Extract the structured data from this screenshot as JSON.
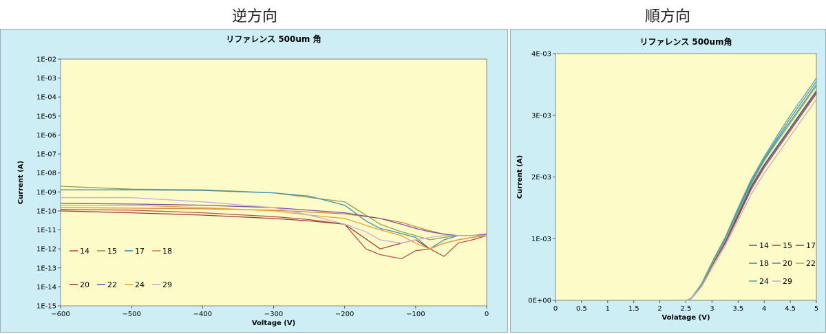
{
  "headings": {
    "left": "逆方向",
    "right": "順方向"
  },
  "chart_data": [
    {
      "type": "line",
      "title": "リファレンス 500um 角",
      "xlabel": "Voltage (V)",
      "ylabel": "Current (A)",
      "xlim": [
        -600,
        0
      ],
      "ylim": [
        1e-15,
        0.01
      ],
      "y_scale": "log",
      "x_ticks": [
        "−600",
        "−500",
        "−400",
        "−300",
        "−200",
        "−100",
        "0"
      ],
      "x_tick_values": [
        -600,
        -500,
        -400,
        -300,
        -200,
        -100,
        0
      ],
      "y_ticks": [
        "1E-15",
        "1E-14",
        "1E-13",
        "1E-12",
        "1E-11",
        "1E-10",
        "1E-09",
        "1E-08",
        "1E-07",
        "1E-06",
        "1E-05",
        "1E-04",
        "1E-03",
        "1E-02"
      ],
      "plot_background": "#fdfbc8",
      "legend_position": "bottom-left",
      "series": [
        {
          "name": "14",
          "color": "#b8524a",
          "x": [
            -600,
            -500,
            -400,
            -300,
            -250,
            -200,
            -170,
            -150,
            -120,
            -100,
            -80,
            -60,
            -40,
            -20,
            0
          ],
          "y": [
            1.2e-10,
            1.1e-10,
            8e-11,
            5e-11,
            3.5e-11,
            2e-11,
            1e-12,
            5e-13,
            3e-13,
            8e-13,
            1e-12,
            4e-13,
            2e-12,
            3e-12,
            5e-12
          ]
        },
        {
          "name": "15",
          "color": "#8ca34a",
          "x": [
            -600,
            -500,
            -400,
            -300,
            -200,
            -150,
            -120,
            -100,
            -80,
            -60,
            -40,
            -20,
            0
          ],
          "y": [
            2e-09,
            1.4e-09,
            1.3e-09,
            9e-10,
            3e-10,
            2e-11,
            8e-12,
            5e-12,
            3e-12,
            4e-12,
            5e-12,
            5e-12,
            5e-12
          ]
        },
        {
          "name": "17",
          "color": "#3f8fb8",
          "x": [
            -600,
            -500,
            -400,
            -300,
            -250,
            -200,
            -170,
            -150,
            -130,
            -100,
            -80,
            -60,
            -40,
            -20,
            0
          ],
          "y": [
            1.3e-09,
            1.3e-09,
            1.2e-09,
            9e-10,
            6e-10,
            2e-10,
            3e-11,
            1.2e-11,
            8e-12,
            4e-12,
            1e-12,
            3e-12,
            5e-12,
            5e-12,
            5e-12
          ]
        },
        {
          "name": "18",
          "color": "#d08c3a",
          "x": [
            -600,
            -500,
            -400,
            -300,
            -200,
            -150,
            -120,
            -100,
            -80,
            -60,
            -40,
            -20,
            0
          ],
          "y": [
            1.5e-10,
            1.4e-10,
            1.3e-10,
            1.1e-10,
            7e-11,
            4e-11,
            2.5e-11,
            1.5e-11,
            9e-12,
            6e-12,
            5e-12,
            5e-12,
            6e-12
          ]
        },
        {
          "name": "20",
          "color": "#a83a3a",
          "x": [
            -600,
            -500,
            -400,
            -300,
            -250,
            -200,
            -150,
            -120,
            -100,
            -80,
            -60,
            -40,
            -20,
            0
          ],
          "y": [
            1e-10,
            8e-11,
            6e-11,
            4e-11,
            3e-11,
            2e-11,
            1e-12,
            2e-12,
            3e-12,
            1e-12,
            2e-12,
            3e-12,
            4e-12,
            5e-12
          ]
        },
        {
          "name": "22",
          "color": "#7d4fa8",
          "x": [
            -600,
            -500,
            -400,
            -300,
            -200,
            -150,
            -120,
            -100,
            -80,
            -60,
            -40,
            -20,
            0
          ],
          "y": [
            2.5e-10,
            2.3e-10,
            2e-10,
            1.5e-10,
            8e-11,
            4e-11,
            2e-11,
            1.2e-11,
            8e-12,
            6e-12,
            5e-12,
            5e-12,
            6e-12
          ]
        },
        {
          "name": "24",
          "color": "#f0a030",
          "x": [
            -600,
            -500,
            -400,
            -300,
            -250,
            -200,
            -150,
            -120,
            -100,
            -80,
            -60,
            -40,
            -20,
            0
          ],
          "y": [
            2e-10,
            2e-10,
            1.5e-10,
            1e-10,
            6e-11,
            4e-11,
            1e-11,
            5e-12,
            2e-12,
            1e-12,
            2e-12,
            3e-12,
            4e-12,
            5e-12
          ]
        },
        {
          "name": "29",
          "color": "#c8aad8",
          "x": [
            -600,
            -500,
            -400,
            -300,
            -250,
            -200,
            -170,
            -150,
            -120,
            -100,
            -80,
            -60,
            -40,
            -20,
            0
          ],
          "y": [
            5e-10,
            5e-10,
            3e-10,
            1.5e-10,
            6e-11,
            2e-11,
            8e-12,
            3e-12,
            2e-12,
            3e-12,
            4e-12,
            5e-12,
            5e-12,
            5e-12,
            5e-12
          ]
        }
      ]
    },
    {
      "type": "line",
      "title": "リファレンス 500um角",
      "xlabel": "Volatage (V)",
      "ylabel": "Current (A)",
      "xlim": [
        0,
        5
      ],
      "ylim": [
        0,
        0.004
      ],
      "x_ticks": [
        "0",
        "0.5",
        "1",
        "1.5",
        "2",
        "2.5",
        "3",
        "3.5",
        "4",
        "4.5",
        "5"
      ],
      "x_tick_values": [
        0,
        0.5,
        1,
        1.5,
        2,
        2.5,
        3,
        3.5,
        4,
        4.5,
        5
      ],
      "y_ticks": [
        "0E+00",
        "1E-03",
        "2E-03",
        "3E-03",
        "4E-03"
      ],
      "y_tick_values": [
        0,
        0.001,
        0.002,
        0.003,
        0.004
      ],
      "plot_background": "#fdfbc8",
      "legend_position": "bottom-right",
      "series": [
        {
          "name": "14",
          "color": "#3a6fa8",
          "x": [
            2.5,
            2.6,
            2.8,
            3.0,
            3.25,
            3.5,
            3.75,
            4.0,
            4.25,
            4.5,
            4.75,
            5.0
          ],
          "y": [
            0,
            3e-05,
            0.00025,
            0.00058,
            0.00095,
            0.0014,
            0.00185,
            0.0022,
            0.0025,
            0.0028,
            0.0031,
            0.0034
          ]
        },
        {
          "name": "15",
          "color": "#a84a3a",
          "x": [
            2.5,
            2.6,
            2.8,
            3.0,
            3.25,
            3.5,
            3.75,
            4.0,
            4.25,
            4.5,
            4.75,
            5.0
          ],
          "y": [
            0,
            3e-05,
            0.00024,
            0.00056,
            0.00092,
            0.00135,
            0.0018,
            0.00215,
            0.00245,
            0.00275,
            0.00305,
            0.00335
          ]
        },
        {
          "name": "17",
          "color": "#7a4a8c",
          "x": [
            2.5,
            2.6,
            2.8,
            3.0,
            3.25,
            3.5,
            3.75,
            4.0,
            4.25,
            4.5,
            4.75,
            5.0
          ],
          "y": [
            0,
            3e-05,
            0.00025,
            0.00057,
            0.00094,
            0.00138,
            0.00183,
            0.00218,
            0.00248,
            0.00278,
            0.00308,
            0.00338
          ]
        },
        {
          "name": "18",
          "color": "#3a9aa8",
          "x": [
            2.5,
            2.6,
            2.8,
            3.0,
            3.25,
            3.5,
            3.75,
            4.0,
            4.25,
            4.5,
            4.75,
            5.0
          ],
          "y": [
            0,
            3e-05,
            0.00026,
            0.0006,
            0.00098,
            0.00145,
            0.0019,
            0.00228,
            0.0026,
            0.0029,
            0.0032,
            0.0035
          ]
        },
        {
          "name": "20",
          "color": "#5a8ac8",
          "x": [
            2.5,
            2.6,
            2.8,
            3.0,
            3.25,
            3.5,
            3.75,
            4.0,
            4.25,
            4.5,
            4.75,
            5.0
          ],
          "y": [
            0,
            3e-05,
            0.00026,
            0.00061,
            0.001,
            0.00148,
            0.00193,
            0.0023,
            0.00263,
            0.00295,
            0.00325,
            0.00355
          ]
        },
        {
          "name": "22",
          "color": "#a8b04a",
          "x": [
            2.5,
            2.6,
            2.8,
            3.0,
            3.25,
            3.5,
            3.75,
            4.0,
            4.25,
            4.5,
            4.75,
            5.0
          ],
          "y": [
            0,
            3e-05,
            0.00025,
            0.00059,
            0.00097,
            0.00143,
            0.00188,
            0.00226,
            0.00257,
            0.00287,
            0.00317,
            0.00347
          ]
        },
        {
          "name": "24",
          "color": "#48a8b8",
          "x": [
            2.5,
            2.6,
            2.8,
            3.0,
            3.25,
            3.5,
            3.75,
            4.0,
            4.25,
            4.5,
            4.75,
            5.0
          ],
          "y": [
            0,
            3e-05,
            0.00027,
            0.00062,
            0.00102,
            0.0015,
            0.00196,
            0.00233,
            0.00267,
            0.003,
            0.0033,
            0.0036
          ]
        },
        {
          "name": "29",
          "color": "#d0a8c8",
          "x": [
            2.5,
            2.6,
            2.8,
            3.0,
            3.25,
            3.5,
            3.75,
            4.0,
            4.25,
            4.5,
            4.75,
            5.0
          ],
          "y": [
            0,
            2e-05,
            0.00022,
            0.00052,
            0.00088,
            0.0013,
            0.00172,
            0.00206,
            0.00236,
            0.00266,
            0.00296,
            0.00326
          ]
        }
      ]
    }
  ]
}
